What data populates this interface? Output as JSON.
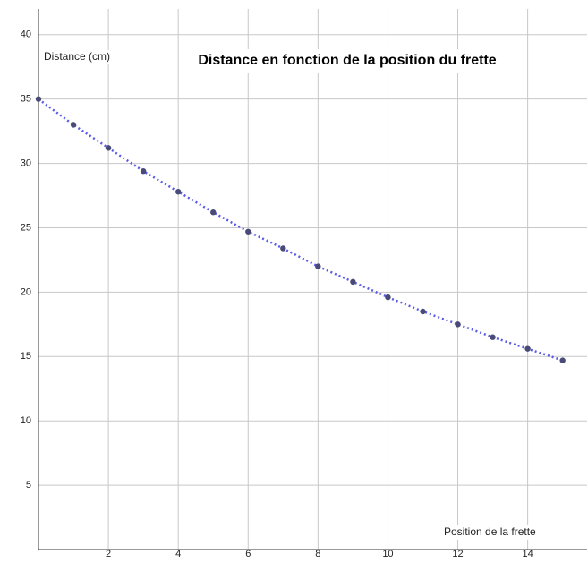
{
  "chart_data": {
    "type": "scatter",
    "title": "Distance en fonction de la position du frette",
    "y_label": "Distance (cm)",
    "x_label": "Position de la frette",
    "x": [
      0,
      1,
      2,
      3,
      4,
      5,
      6,
      7,
      8,
      9,
      10,
      11,
      12,
      13,
      14,
      15
    ],
    "series": [
      {
        "color": "#4a4a78",
        "line_color": "#5b5be6",
        "values": [
          35,
          33,
          31.2,
          29.4,
          27.8,
          26.2,
          24.7,
          23.4,
          22.0,
          20.8,
          19.6,
          18.5,
          17.5,
          16.5,
          15.6,
          14.7
        ]
      }
    ],
    "xlim": [
      0,
      15.7
    ],
    "ylim": [
      0,
      42
    ],
    "xticks": [
      2,
      4,
      6,
      8,
      10,
      12,
      14
    ],
    "yticks": [
      5,
      10,
      15,
      20,
      25,
      30,
      35,
      40
    ],
    "grid": true,
    "trendline": true
  }
}
